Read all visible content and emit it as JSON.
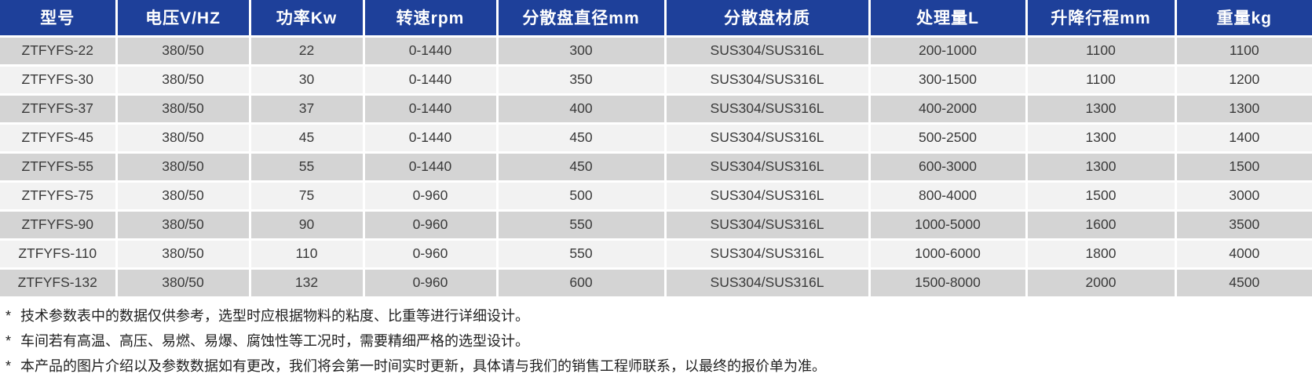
{
  "colors": {
    "header_bg": "#1e409a",
    "header_text": "#ffffff",
    "row_odd_bg": "#d4d4d4",
    "row_even_bg": "#f2f2f2",
    "cell_text": "#3a3a3a",
    "footnote_text": "#1f1f1f",
    "page_bg": "#ffffff"
  },
  "table": {
    "columns": [
      "型号",
      "电压V/HZ",
      "功率Kw",
      "转速rpm",
      "分散盘直径mm",
      "分散盘材质",
      "处理量L",
      "升降行程mm",
      "重量kg"
    ],
    "rows": [
      [
        "ZTFYFS-22",
        "380/50",
        "22",
        "0-1440",
        "300",
        "SUS304/SUS316L",
        "200-1000",
        "1100",
        "1100"
      ],
      [
        "ZTFYFS-30",
        "380/50",
        "30",
        "0-1440",
        "350",
        "SUS304/SUS316L",
        "300-1500",
        "1100",
        "1200"
      ],
      [
        "ZTFYFS-37",
        "380/50",
        "37",
        "0-1440",
        "400",
        "SUS304/SUS316L",
        "400-2000",
        "1300",
        "1300"
      ],
      [
        "ZTFYFS-45",
        "380/50",
        "45",
        "0-1440",
        "450",
        "SUS304/SUS316L",
        "500-2500",
        "1300",
        "1400"
      ],
      [
        "ZTFYFS-55",
        "380/50",
        "55",
        "0-1440",
        "450",
        "SUS304/SUS316L",
        "600-3000",
        "1300",
        "1500"
      ],
      [
        "ZTFYFS-75",
        "380/50",
        "75",
        "0-960",
        "500",
        "SUS304/SUS316L",
        "800-4000",
        "1500",
        "3000"
      ],
      [
        "ZTFYFS-90",
        "380/50",
        "90",
        "0-960",
        "550",
        "SUS304/SUS316L",
        "1000-5000",
        "1600",
        "3500"
      ],
      [
        "ZTFYFS-110",
        "380/50",
        "110",
        "0-960",
        "550",
        "SUS304/SUS316L",
        "1000-6000",
        "1800",
        "4000"
      ],
      [
        "ZTFYFS-132",
        "380/50",
        "132",
        "0-960",
        "600",
        "SUS304/SUS316L",
        "1500-8000",
        "2000",
        "4500"
      ]
    ],
    "column_keys": [
      "model",
      "voltage",
      "power",
      "speed",
      "disc-diameter",
      "disc-material",
      "capacity",
      "lift-stroke",
      "weight"
    ]
  },
  "footnotes": [
    {
      "marker": "*",
      "text": "技术参数表中的数据仅供参考，选型时应根据物料的粘度、比重等进行详细设计。"
    },
    {
      "marker": "*",
      "text": "车间若有高温、高压、易燃、易爆、腐蚀性等工况时，需要精细严格的选型设计。"
    },
    {
      "marker": "*",
      "text": "本产品的图片介绍以及参数数据如有更改，我们将会第一时间实时更新，具体请与我们的销售工程师联系，以最终的报价单为准。"
    }
  ]
}
